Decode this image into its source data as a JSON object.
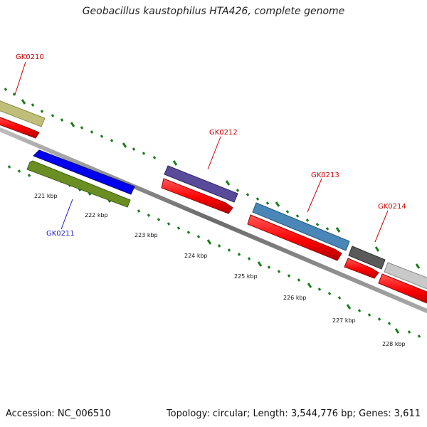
{
  "title": "Geobacillus kaustophilus HTA426, complete genome",
  "footer": {
    "accession": "Accession: NC_006510",
    "summary": "Topology: circular; Length: 3,544,776 bp; Genes: 3,611"
  },
  "colors": {
    "backbone": "#777777",
    "cds_red": "#ff0000",
    "tick_green": "#1a7f1a",
    "label_red": "#cc0000",
    "label_blue": "#1a1acc"
  },
  "gene_labels": {
    "GK0210": "GK0210",
    "GK0211": "GK0211",
    "GK0212": "GK0212",
    "GK0213": "GK0213",
    "GK0214": "GK0214"
  },
  "kbp_labels": [
    "221 kbp",
    "222 kbp",
    "223 kbp",
    "224 kbp",
    "225 kbp",
    "226 kbp",
    "227 kbp",
    "228 kbp"
  ]
}
